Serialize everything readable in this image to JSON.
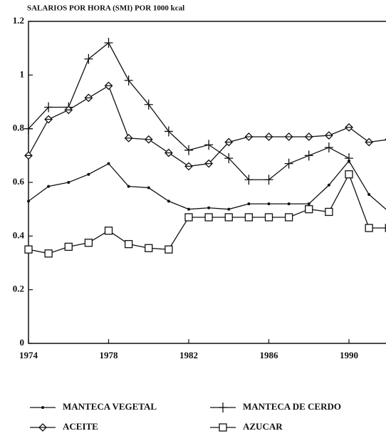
{
  "chart_data": {
    "type": "line",
    "title": "SALARIOS POR HORA (SMI) POR 1000 kcal",
    "x": [
      1974,
      1975,
      1976,
      1977,
      1978,
      1979,
      1980,
      1981,
      1982,
      1983,
      1984,
      1985,
      1986,
      1987,
      1988,
      1989,
      1990,
      1991,
      1992
    ],
    "series": [
      {
        "name": "MANTECA VEGETAL",
        "color": "#111111",
        "marker": "dot",
        "values": [
          0.53,
          0.585,
          0.6,
          0.63,
          0.67,
          0.585,
          0.58,
          0.53,
          0.5,
          0.505,
          0.5,
          0.52,
          0.52,
          0.52,
          0.52,
          0.59,
          0.68,
          0.555,
          0.49
        ]
      },
      {
        "name": "MANTECA DE CERDO",
        "color": "#111111",
        "marker": "plus",
        "values": [
          0.8,
          0.88,
          0.88,
          1.06,
          1.12,
          0.98,
          0.89,
          0.79,
          0.72,
          0.74,
          0.69,
          0.61,
          0.61,
          0.67,
          0.7,
          0.73,
          0.69,
          null,
          null
        ]
      },
      {
        "name": "ACEITE",
        "color": "#111111",
        "marker": "diamond",
        "values": [
          0.7,
          0.835,
          0.87,
          0.915,
          0.96,
          0.765,
          0.76,
          0.71,
          0.66,
          0.67,
          0.75,
          0.77,
          0.77,
          0.77,
          0.77,
          0.775,
          0.805,
          0.75,
          0.76
        ]
      },
      {
        "name": "AZUCAR",
        "color": "#111111",
        "marker": "square",
        "values": [
          0.35,
          0.335,
          0.36,
          0.375,
          0.42,
          0.37,
          0.355,
          0.35,
          0.47,
          0.47,
          0.47,
          0.47,
          0.47,
          0.47,
          0.5,
          0.49,
          0.63,
          0.43,
          0.43
        ]
      }
    ],
    "xlim": [
      1974,
      1992
    ],
    "xticks": [
      1974,
      1978,
      1982,
      1986,
      1990
    ],
    "ylim": [
      0,
      1.2
    ],
    "yticks": [
      0,
      0.2,
      0.4,
      0.6,
      0.8,
      1,
      1.2
    ]
  }
}
